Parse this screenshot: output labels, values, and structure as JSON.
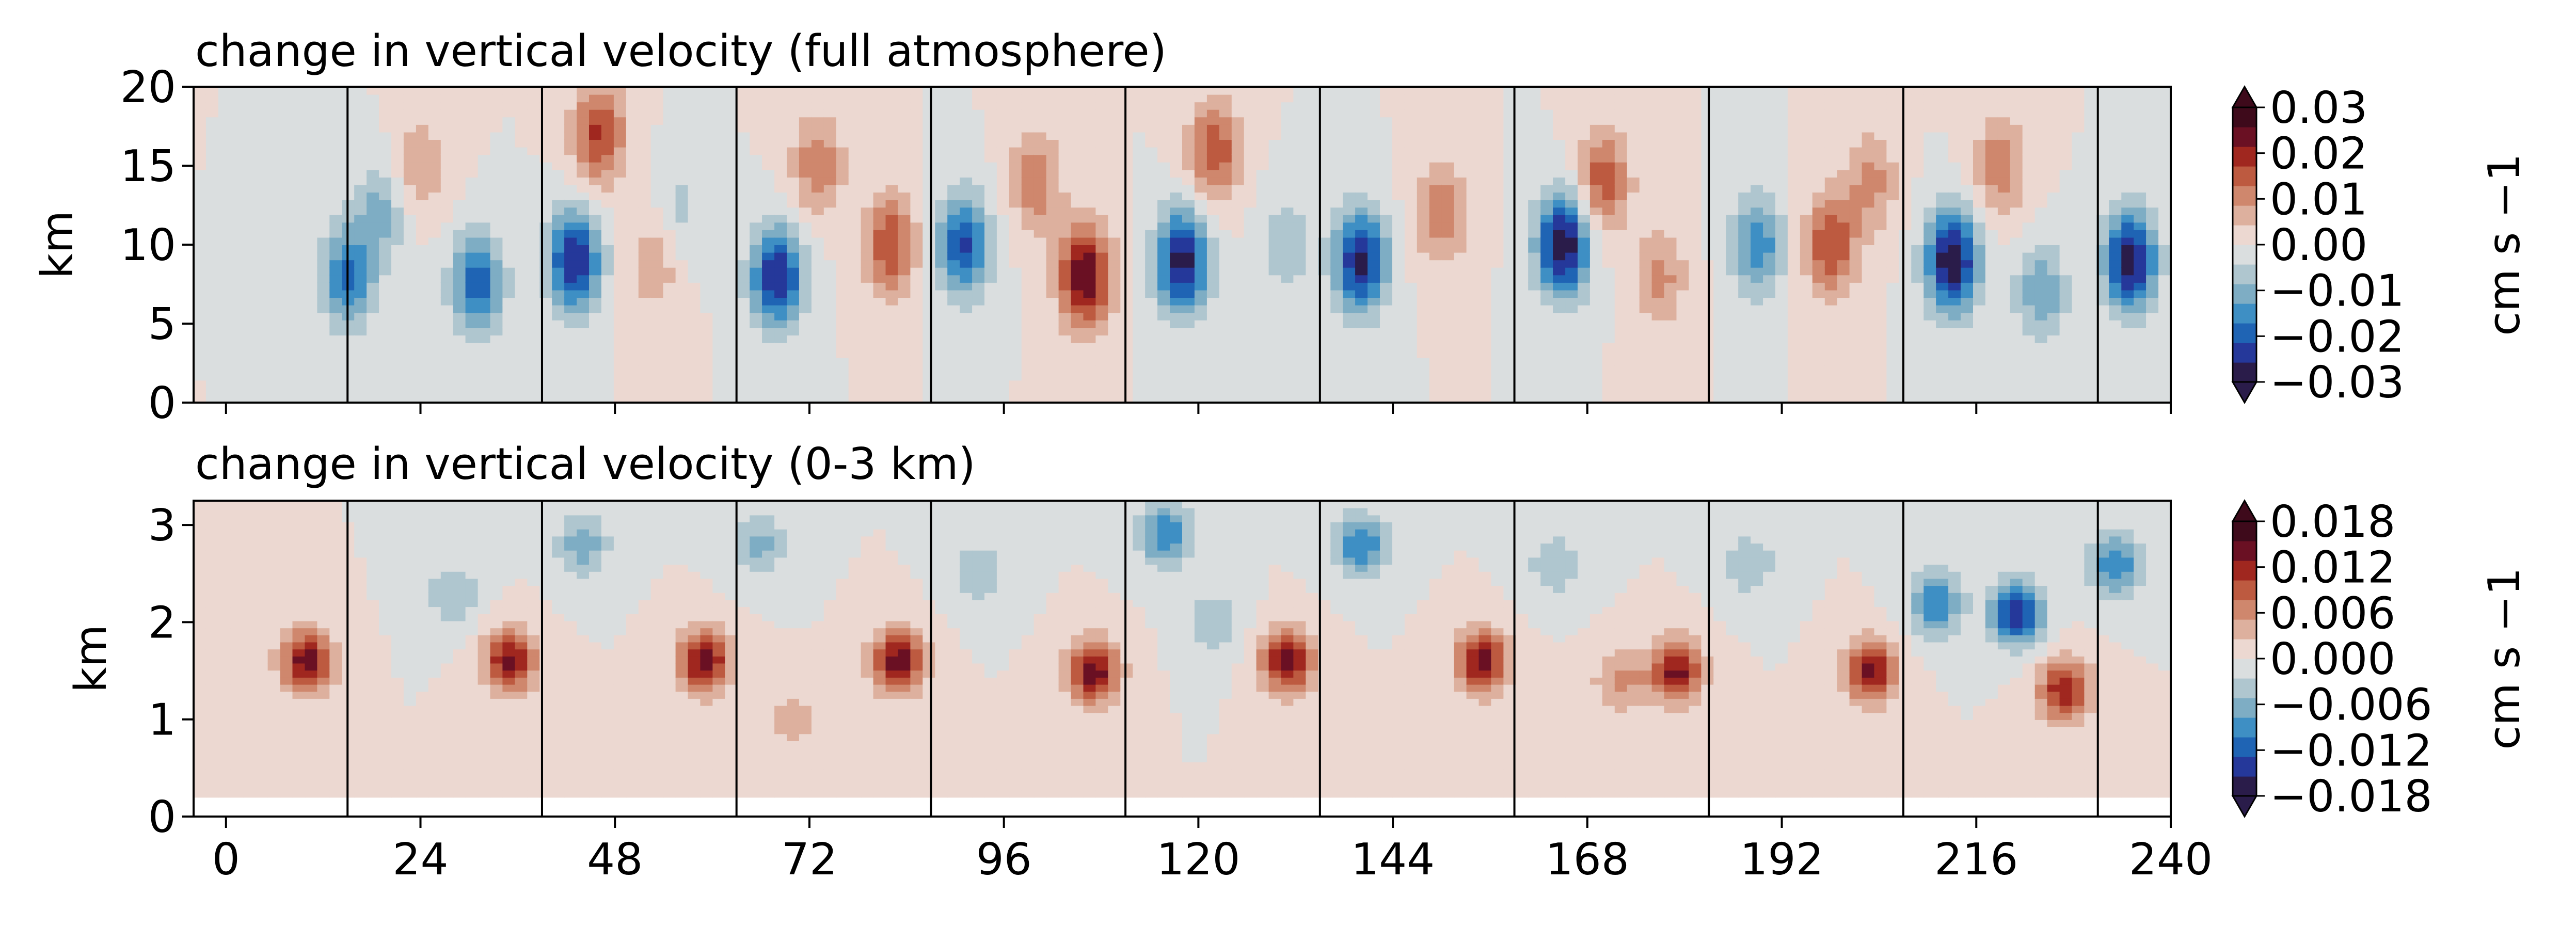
{
  "chart_data": [
    {
      "type": "heatmap",
      "title": "change in vertical velocity (full atmosphere)",
      "ylabel": "km",
      "xlim": [
        -4,
        240
      ],
      "ylim": [
        0,
        20
      ],
      "yticks": [
        0,
        5,
        10,
        15,
        20
      ],
      "xticks": [
        0,
        24,
        48,
        72,
        96,
        120,
        144,
        168,
        192,
        216,
        240
      ],
      "x_tick_labels_shown": false,
      "cycle_boundaries_x": [
        15,
        39,
        63,
        87,
        111,
        135,
        159,
        183,
        207,
        231
      ],
      "colorbar": {
        "label": "cm s −1",
        "ticks": [
          "0.03",
          "0.02",
          "0.01",
          "0.00",
          "−0.01",
          "−0.02",
          "−0.03"
        ],
        "range": [
          -0.03,
          0.03
        ],
        "extend": "both"
      },
      "features": [
        {
          "x": 15,
          "y": 8,
          "value": -0.018
        },
        {
          "x": 19,
          "y": 12,
          "value": -0.01
        },
        {
          "x": 24,
          "y": 15,
          "value": 0.008
        },
        {
          "x": 31,
          "y": 7.5,
          "value": -0.02
        },
        {
          "x": 43,
          "y": 9,
          "value": -0.026
        },
        {
          "x": 46,
          "y": 17,
          "value": 0.018
        },
        {
          "x": 53,
          "y": 9,
          "value": 0.008
        },
        {
          "x": 56,
          "y": 12,
          "value": -0.006
        },
        {
          "x": 68,
          "y": 8,
          "value": -0.026
        },
        {
          "x": 73,
          "y": 15,
          "value": 0.012
        },
        {
          "x": 82,
          "y": 10,
          "value": 0.017
        },
        {
          "x": 91,
          "y": 10,
          "value": -0.022
        },
        {
          "x": 100,
          "y": 14,
          "value": 0.012
        },
        {
          "x": 106,
          "y": 8,
          "value": 0.026
        },
        {
          "x": 118,
          "y": 9,
          "value": -0.028
        },
        {
          "x": 122,
          "y": 16,
          "value": 0.016
        },
        {
          "x": 131,
          "y": 10,
          "value": -0.008
        },
        {
          "x": 140,
          "y": 9,
          "value": -0.027
        },
        {
          "x": 150,
          "y": 12,
          "value": 0.012
        },
        {
          "x": 165,
          "y": 10,
          "value": -0.03
        },
        {
          "x": 170,
          "y": 14,
          "value": 0.016
        },
        {
          "x": 177,
          "y": 8,
          "value": 0.01
        },
        {
          "x": 189,
          "y": 10,
          "value": -0.016
        },
        {
          "x": 198,
          "y": 10,
          "value": 0.017
        },
        {
          "x": 203,
          "y": 14,
          "value": 0.01
        },
        {
          "x": 213,
          "y": 9,
          "value": -0.03
        },
        {
          "x": 219,
          "y": 15,
          "value": 0.012
        },
        {
          "x": 224,
          "y": 7,
          "value": -0.012
        },
        {
          "x": 235,
          "y": 9,
          "value": -0.028
        }
      ]
    },
    {
      "type": "heatmap",
      "title": "change in vertical velocity (0-3 km)",
      "ylabel": "km",
      "xlim": [
        -4,
        240
      ],
      "ylim": [
        0,
        3.25
      ],
      "yticks": [
        0,
        1,
        2,
        3
      ],
      "xticks": [
        0,
        24,
        48,
        72,
        96,
        120,
        144,
        168,
        192,
        216,
        240
      ],
      "xtick_labels": [
        "0",
        "24",
        "48",
        "72",
        "96",
        "120",
        "144",
        "168",
        "192",
        "216",
        "240"
      ],
      "data_y_min": 0.2,
      "cycle_boundaries_x": [
        15,
        39,
        63,
        87,
        111,
        135,
        159,
        183,
        207,
        231
      ],
      "colorbar": {
        "label": "cm s −1",
        "ticks": [
          "0.018",
          "0.012",
          "0.006",
          "0.000",
          "−0.006",
          "−0.012",
          "−0.018"
        ],
        "range": [
          -0.021,
          0.021
        ],
        "extend": "both"
      },
      "features": [
        {
          "x": 10,
          "y": 1.6,
          "value": 0.017
        },
        {
          "x": 28,
          "y": 2.3,
          "value": -0.006
        },
        {
          "x": 35,
          "y": 1.6,
          "value": 0.016
        },
        {
          "x": 44,
          "y": 2.8,
          "value": -0.008
        },
        {
          "x": 59,
          "y": 1.6,
          "value": 0.017
        },
        {
          "x": 66,
          "y": 2.8,
          "value": -0.007
        },
        {
          "x": 70,
          "y": 1.0,
          "value": 0.005
        },
        {
          "x": 83,
          "y": 1.6,
          "value": 0.017
        },
        {
          "x": 93,
          "y": 2.5,
          "value": -0.006
        },
        {
          "x": 107,
          "y": 1.5,
          "value": 0.017
        },
        {
          "x": 116,
          "y": 2.9,
          "value": -0.012
        },
        {
          "x": 122,
          "y": 2.0,
          "value": -0.006
        },
        {
          "x": 131,
          "y": 1.6,
          "value": 0.017
        },
        {
          "x": 140,
          "y": 2.8,
          "value": -0.012
        },
        {
          "x": 155,
          "y": 1.6,
          "value": 0.017
        },
        {
          "x": 164,
          "y": 2.6,
          "value": -0.006
        },
        {
          "x": 172,
          "y": 1.4,
          "value": 0.007
        },
        {
          "x": 179,
          "y": 1.5,
          "value": 0.016
        },
        {
          "x": 188,
          "y": 2.6,
          "value": -0.006
        },
        {
          "x": 203,
          "y": 1.5,
          "value": 0.016
        },
        {
          "x": 211,
          "y": 2.2,
          "value": -0.012
        },
        {
          "x": 221,
          "y": 2.1,
          "value": -0.018
        },
        {
          "x": 227,
          "y": 1.3,
          "value": 0.015
        },
        {
          "x": 233,
          "y": 2.6,
          "value": -0.012
        }
      ]
    }
  ],
  "colormap": [
    "#2a1c4a",
    "#25389a",
    "#1f64b4",
    "#3e8fc4",
    "#7eadc4",
    "#afc6cf",
    "#dadedf",
    "#ecd8d1",
    "#ddb09e",
    "#cf876d",
    "#bd5a40",
    "#a0271f",
    "#6a1023",
    "#3e0a1b"
  ]
}
